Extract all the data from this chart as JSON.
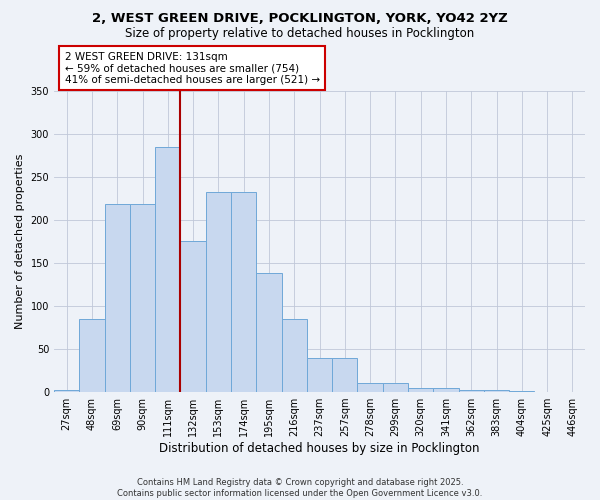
{
  "title_line1": "2, WEST GREEN DRIVE, POCKLINGTON, YORK, YO42 2YZ",
  "title_line2": "Size of property relative to detached houses in Pocklington",
  "xlabel": "Distribution of detached houses by size in Pocklington",
  "ylabel": "Number of detached properties",
  "categories": [
    "27sqm",
    "48sqm",
    "69sqm",
    "90sqm",
    "111sqm",
    "132sqm",
    "153sqm",
    "174sqm",
    "195sqm",
    "216sqm",
    "237sqm",
    "257sqm",
    "278sqm",
    "299sqm",
    "320sqm",
    "341sqm",
    "362sqm",
    "383sqm",
    "404sqm",
    "425sqm",
    "446sqm"
  ],
  "values": [
    3,
    85,
    218,
    218,
    285,
    175,
    232,
    232,
    138,
    85,
    40,
    40,
    11,
    11,
    5,
    5,
    2,
    2,
    1,
    0,
    0
  ],
  "bar_color": "#c8d8ef",
  "bar_edge_color": "#6fa8d8",
  "marker_line_color": "#aa0000",
  "annotation_text": "2 WEST GREEN DRIVE: 131sqm\n← 59% of detached houses are smaller (754)\n41% of semi-detached houses are larger (521) →",
  "annotation_box_color": "#ffffff",
  "annotation_box_edge_color": "#cc0000",
  "ylim": [
    0,
    350
  ],
  "yticks": [
    0,
    50,
    100,
    150,
    200,
    250,
    300,
    350
  ],
  "bg_color": "#eef2f8",
  "footer_line1": "Contains HM Land Registry data © Crown copyright and database right 2025.",
  "footer_line2": "Contains public sector information licensed under the Open Government Licence v3.0."
}
